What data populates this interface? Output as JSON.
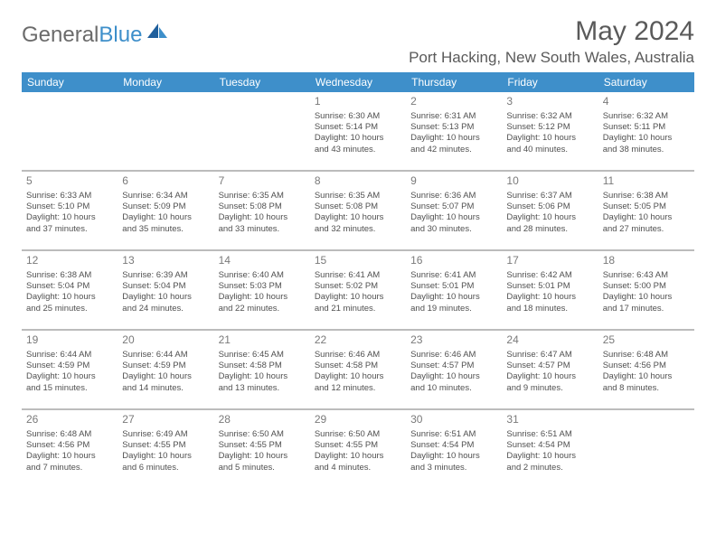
{
  "logo": {
    "text_general": "General",
    "text_blue": "Blue"
  },
  "header": {
    "month_title": "May 2024",
    "location": "Port Hacking, New South Wales, Australia"
  },
  "colors": {
    "header_bg": "#3e8fca",
    "header_text": "#ffffff",
    "row_sep": "#bcbcbc",
    "text": "#505050",
    "title": "#5a5a5a"
  },
  "weekdays": [
    "Sunday",
    "Monday",
    "Tuesday",
    "Wednesday",
    "Thursday",
    "Friday",
    "Saturday"
  ],
  "cells": [
    [
      null,
      null,
      null,
      {
        "n": "1",
        "sr": "6:30 AM",
        "ss": "5:14 PM",
        "dl1": "10 hours",
        "dl2": "43 minutes."
      },
      {
        "n": "2",
        "sr": "6:31 AM",
        "ss": "5:13 PM",
        "dl1": "10 hours",
        "dl2": "42 minutes."
      },
      {
        "n": "3",
        "sr": "6:32 AM",
        "ss": "5:12 PM",
        "dl1": "10 hours",
        "dl2": "40 minutes."
      },
      {
        "n": "4",
        "sr": "6:32 AM",
        "ss": "5:11 PM",
        "dl1": "10 hours",
        "dl2": "38 minutes."
      }
    ],
    [
      {
        "n": "5",
        "sr": "6:33 AM",
        "ss": "5:10 PM",
        "dl1": "10 hours",
        "dl2": "37 minutes."
      },
      {
        "n": "6",
        "sr": "6:34 AM",
        "ss": "5:09 PM",
        "dl1": "10 hours",
        "dl2": "35 minutes."
      },
      {
        "n": "7",
        "sr": "6:35 AM",
        "ss": "5:08 PM",
        "dl1": "10 hours",
        "dl2": "33 minutes."
      },
      {
        "n": "8",
        "sr": "6:35 AM",
        "ss": "5:08 PM",
        "dl1": "10 hours",
        "dl2": "32 minutes."
      },
      {
        "n": "9",
        "sr": "6:36 AM",
        "ss": "5:07 PM",
        "dl1": "10 hours",
        "dl2": "30 minutes."
      },
      {
        "n": "10",
        "sr": "6:37 AM",
        "ss": "5:06 PM",
        "dl1": "10 hours",
        "dl2": "28 minutes."
      },
      {
        "n": "11",
        "sr": "6:38 AM",
        "ss": "5:05 PM",
        "dl1": "10 hours",
        "dl2": "27 minutes."
      }
    ],
    [
      {
        "n": "12",
        "sr": "6:38 AM",
        "ss": "5:04 PM",
        "dl1": "10 hours",
        "dl2": "25 minutes."
      },
      {
        "n": "13",
        "sr": "6:39 AM",
        "ss": "5:04 PM",
        "dl1": "10 hours",
        "dl2": "24 minutes."
      },
      {
        "n": "14",
        "sr": "6:40 AM",
        "ss": "5:03 PM",
        "dl1": "10 hours",
        "dl2": "22 minutes."
      },
      {
        "n": "15",
        "sr": "6:41 AM",
        "ss": "5:02 PM",
        "dl1": "10 hours",
        "dl2": "21 minutes."
      },
      {
        "n": "16",
        "sr": "6:41 AM",
        "ss": "5:01 PM",
        "dl1": "10 hours",
        "dl2": "19 minutes."
      },
      {
        "n": "17",
        "sr": "6:42 AM",
        "ss": "5:01 PM",
        "dl1": "10 hours",
        "dl2": "18 minutes."
      },
      {
        "n": "18",
        "sr": "6:43 AM",
        "ss": "5:00 PM",
        "dl1": "10 hours",
        "dl2": "17 minutes."
      }
    ],
    [
      {
        "n": "19",
        "sr": "6:44 AM",
        "ss": "4:59 PM",
        "dl1": "10 hours",
        "dl2": "15 minutes."
      },
      {
        "n": "20",
        "sr": "6:44 AM",
        "ss": "4:59 PM",
        "dl1": "10 hours",
        "dl2": "14 minutes."
      },
      {
        "n": "21",
        "sr": "6:45 AM",
        "ss": "4:58 PM",
        "dl1": "10 hours",
        "dl2": "13 minutes."
      },
      {
        "n": "22",
        "sr": "6:46 AM",
        "ss": "4:58 PM",
        "dl1": "10 hours",
        "dl2": "12 minutes."
      },
      {
        "n": "23",
        "sr": "6:46 AM",
        "ss": "4:57 PM",
        "dl1": "10 hours",
        "dl2": "10 minutes."
      },
      {
        "n": "24",
        "sr": "6:47 AM",
        "ss": "4:57 PM",
        "dl1": "10 hours",
        "dl2": "9 minutes."
      },
      {
        "n": "25",
        "sr": "6:48 AM",
        "ss": "4:56 PM",
        "dl1": "10 hours",
        "dl2": "8 minutes."
      }
    ],
    [
      {
        "n": "26",
        "sr": "6:48 AM",
        "ss": "4:56 PM",
        "dl1": "10 hours",
        "dl2": "7 minutes."
      },
      {
        "n": "27",
        "sr": "6:49 AM",
        "ss": "4:55 PM",
        "dl1": "10 hours",
        "dl2": "6 minutes."
      },
      {
        "n": "28",
        "sr": "6:50 AM",
        "ss": "4:55 PM",
        "dl1": "10 hours",
        "dl2": "5 minutes."
      },
      {
        "n": "29",
        "sr": "6:50 AM",
        "ss": "4:55 PM",
        "dl1": "10 hours",
        "dl2": "4 minutes."
      },
      {
        "n": "30",
        "sr": "6:51 AM",
        "ss": "4:54 PM",
        "dl1": "10 hours",
        "dl2": "3 minutes."
      },
      {
        "n": "31",
        "sr": "6:51 AM",
        "ss": "4:54 PM",
        "dl1": "10 hours",
        "dl2": "2 minutes."
      },
      null
    ]
  ],
  "labels": {
    "sunrise": "Sunrise:",
    "sunset": "Sunset:",
    "daylight": "Daylight:",
    "and": "and"
  }
}
